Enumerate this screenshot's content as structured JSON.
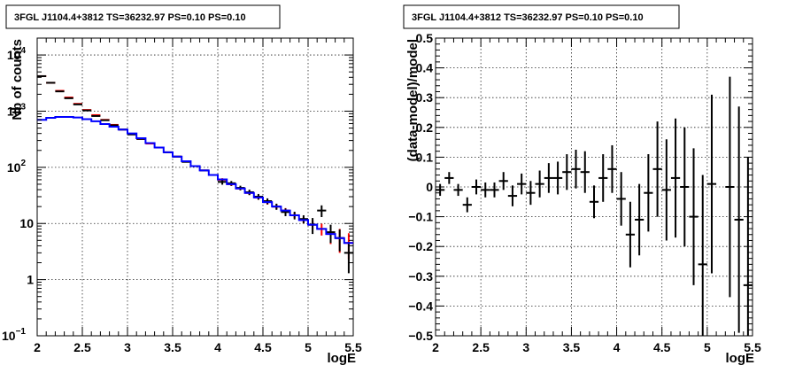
{
  "chart_data": [
    {
      "type": "line",
      "title": "3FGL J1104.4+3812 TS=36232.97 PS=0.10 PS=0.10",
      "xlabel": "logE",
      "ylabel": "Nb of counts",
      "xlim": [
        2,
        5.5
      ],
      "ylim": [
        0.1,
        20000
      ],
      "yscale": "log",
      "grid": true,
      "x_ticks": [
        "2",
        "2.5",
        "3",
        "3.5",
        "4",
        "4.5",
        "5",
        "5.5"
      ],
      "y_ticks": [
        {
          "value": 0.1,
          "base": "10",
          "exp": "−1"
        },
        {
          "value": 1,
          "base": "1",
          "exp": ""
        },
        {
          "value": 10,
          "base": "10",
          "exp": ""
        },
        {
          "value": 100,
          "base": "10",
          "exp": "2"
        },
        {
          "value": 1000,
          "base": "10",
          "exp": "3"
        },
        {
          "value": 10000,
          "base": "10",
          "exp": "4"
        }
      ],
      "bin_edges": [
        2.0,
        2.1,
        2.2,
        2.3,
        2.4,
        2.5,
        2.6,
        2.7,
        2.8,
        2.9,
        3.0,
        3.1,
        3.2,
        3.3,
        3.4,
        3.5,
        3.6,
        3.7,
        3.8,
        3.9,
        4.0,
        4.1,
        4.2,
        4.3,
        4.4,
        4.5,
        4.6,
        4.7,
        4.8,
        4.9,
        5.0,
        5.1,
        5.2,
        5.3,
        5.4,
        5.5
      ],
      "series": [
        {
          "name": "",
          "color": "#ff0000",
          "style": "errorbar",
          "values": [
            4200,
            3200,
            2300,
            1750,
            1350,
            1050,
            850,
            700,
            570,
            470,
            390,
            320,
            265,
            225,
            185,
            155,
            128,
            105,
            88,
            73,
            60,
            50,
            42,
            35,
            29,
            24,
            20,
            17,
            14,
            11.5,
            9.5,
            8,
            6.5,
            5.5,
            4.5
          ],
          "errors": [
            0,
            0,
            0,
            0,
            0,
            0,
            0,
            0,
            0,
            0,
            0,
            0,
            0,
            0,
            0,
            0,
            0,
            0,
            0,
            0,
            4,
            3.5,
            3,
            2.8,
            2.5,
            2.3,
            2,
            1.8,
            1.6,
            1.5,
            1.8,
            1.9,
            2.2,
            2.5,
            2.2
          ]
        },
        {
          "name": "",
          "color": "#000000",
          "style": "errorbar",
          "values": [
            4200,
            3200,
            2250,
            1700,
            1320,
            1030,
            820,
            690,
            560,
            470,
            385,
            320,
            270,
            225,
            185,
            155,
            125,
            105,
            88,
            73,
            55,
            52,
            43,
            36,
            30,
            25,
            20,
            16,
            14,
            12,
            9.5,
            17,
            7,
            5.5,
            3
          ],
          "errors": [
            0,
            0,
            0,
            0,
            0,
            0,
            0,
            0,
            0,
            0,
            0,
            0,
            0,
            0,
            0,
            0,
            0,
            0,
            0,
            0,
            6,
            5,
            4,
            4,
            3.5,
            3,
            2.5,
            2.5,
            2.2,
            2,
            3,
            4,
            2.5,
            2.3,
            1.7
          ]
        },
        {
          "name": "",
          "color": "#0000ff",
          "style": "step",
          "values": [
            700,
            760,
            790,
            790,
            770,
            720,
            660,
            590,
            530,
            470,
            400,
            330,
            270,
            225,
            185,
            155,
            128,
            105,
            88,
            73,
            61,
            50,
            42,
            35,
            29,
            24,
            20,
            17,
            14,
            11.5,
            9.5,
            8,
            6.5,
            5.5,
            4.5
          ]
        }
      ]
    },
    {
      "type": "scatter",
      "title": "3FGL J1104.4+3812 TS=36232.97 PS=0.10 PS=0.10",
      "xlabel": "logE",
      "ylabel": "(data-model)/model",
      "xlim": [
        2,
        5.5
      ],
      "ylim": [
        -0.5,
        0.5
      ],
      "grid": true,
      "x_ticks": [
        "2",
        "2.5",
        "3",
        "3.5",
        "4",
        "4.5",
        "5",
        "5.5"
      ],
      "y_ticks": [
        "−0.5",
        "−0.4",
        "−0.3",
        "−0.2",
        "−0.1",
        "0",
        "0.1",
        "0.2",
        "0.3",
        "0.4",
        "0.5"
      ],
      "y_tick_values": [
        -0.5,
        -0.4,
        -0.3,
        -0.2,
        -0.1,
        0,
        0.1,
        0.2,
        0.3,
        0.4,
        0.5
      ],
      "series": [
        {
          "name": "",
          "color": "#000000",
          "x": [
            2.05,
            2.15,
            2.25,
            2.35,
            2.45,
            2.55,
            2.65,
            2.75,
            2.85,
            2.95,
            3.05,
            3.15,
            3.25,
            3.35,
            3.45,
            3.55,
            3.65,
            3.75,
            3.85,
            3.95,
            4.05,
            4.15,
            4.25,
            4.35,
            4.45,
            4.55,
            4.65,
            4.75,
            4.85,
            4.95,
            5.05,
            5.25,
            5.35,
            5.45
          ],
          "y": [
            -0.01,
            0.03,
            -0.01,
            -0.06,
            0.0,
            -0.01,
            -0.01,
            0.02,
            -0.03,
            0.01,
            -0.02,
            0.01,
            0.03,
            0.03,
            0.05,
            0.06,
            0.05,
            -0.05,
            0.03,
            0.06,
            -0.04,
            -0.16,
            -0.11,
            -0.02,
            0.06,
            -0.01,
            0.03,
            0.0,
            -0.1,
            -0.26,
            0.01,
            0.0,
            -0.11,
            -0.33
          ],
          "errors": [
            0.02,
            0.02,
            0.02,
            0.025,
            0.025,
            0.025,
            0.025,
            0.03,
            0.035,
            0.035,
            0.04,
            0.045,
            0.05,
            0.055,
            0.06,
            0.065,
            0.07,
            0.055,
            0.08,
            0.08,
            0.09,
            0.11,
            0.12,
            0.13,
            0.16,
            0.17,
            0.2,
            0.2,
            0.23,
            0.3,
            0.3,
            0.37,
            0.38,
            0.43
          ],
          "half_width": 0.05
        }
      ]
    }
  ]
}
